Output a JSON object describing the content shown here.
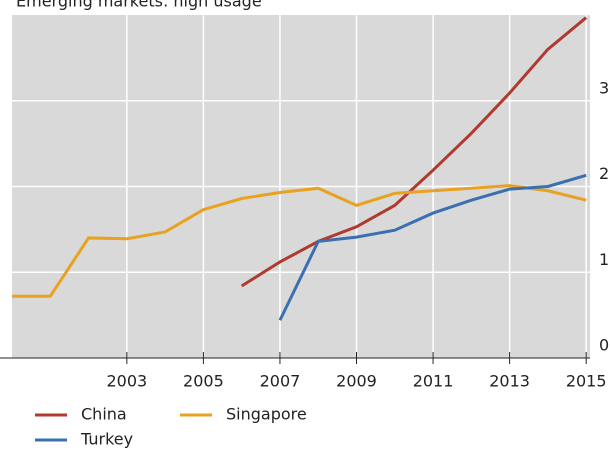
{
  "chart_data": {
    "type": "line",
    "title": "Emerging markets: high usage",
    "x": [
      2000,
      2001,
      2002,
      2003,
      2004,
      2005,
      2006,
      2007,
      2008,
      2009,
      2010,
      2011,
      2012,
      2013,
      2014,
      2015
    ],
    "series": [
      {
        "name": "China",
        "color": "#b03a2e",
        "values": [
          null,
          null,
          null,
          null,
          null,
          null,
          0.84,
          1.12,
          1.36,
          1.53,
          1.78,
          2.19,
          2.62,
          3.09,
          3.6,
          3.97
        ]
      },
      {
        "name": "Singapore",
        "color": "#e8a221",
        "values": [
          0.72,
          0.72,
          1.4,
          1.39,
          1.47,
          1.73,
          1.86,
          1.93,
          1.98,
          1.78,
          1.92,
          1.95,
          1.98,
          2.01,
          1.95,
          1.84
        ]
      },
      {
        "name": "Turkey",
        "color": "#3b6fb0",
        "values": [
          null,
          null,
          null,
          null,
          null,
          null,
          null,
          0.44,
          1.36,
          1.41,
          1.49,
          1.69,
          1.84,
          1.97,
          2.0,
          2.13
        ]
      }
    ],
    "xlim": [
      2000,
      2015.1
    ],
    "xticks": [
      2003,
      2005,
      2007,
      2009,
      2011,
      2013,
      2015
    ],
    "ylim": [
      0,
      4
    ],
    "yticks": [
      0,
      1,
      2,
      3
    ],
    "grid": true
  }
}
